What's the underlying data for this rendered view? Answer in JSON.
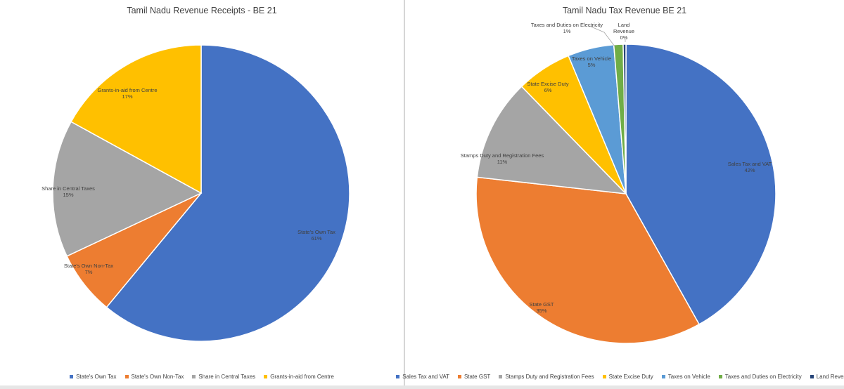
{
  "chart_data": [
    {
      "type": "pie",
      "title": "Tamil Nadu Revenue Receipts - BE 21",
      "slices": [
        {
          "label": "State's Own Tax",
          "value": 61,
          "pct_label": "61%",
          "color": "#4472C4"
        },
        {
          "label": "State's Own Non-Tax",
          "value": 7,
          "pct_label": "7%",
          "color": "#ED7D31"
        },
        {
          "label": "Share in Central Taxes",
          "value": 15,
          "pct_label": "15%",
          "color": "#A5A5A5"
        },
        {
          "label": "Grants-in-aid from Centre",
          "value": 17,
          "pct_label": "17%",
          "color": "#FFC000"
        }
      ],
      "legend": [
        "State's Own Tax",
        "State's Own Non-Tax",
        "Share in Central Taxes",
        "Grants-in-aid from Centre"
      ],
      "legend_position": "bottom"
    },
    {
      "type": "pie",
      "title": "Tamil Nadu Tax Revenue BE 21",
      "slices": [
        {
          "label": "Sales Tax and VAT",
          "value": 42,
          "pct_label": "42%",
          "color": "#4472C4"
        },
        {
          "label": "State GST",
          "value": 35,
          "pct_label": "35%",
          "color": "#ED7D31"
        },
        {
          "label": "Stamps Duty and Registration Fees",
          "value": 11,
          "pct_label": "11%",
          "color": "#A5A5A5"
        },
        {
          "label": "State Excise Duty",
          "value": 6,
          "pct_label": "6%",
          "color": "#FFC000"
        },
        {
          "label": "Taxes on Vehicle",
          "value": 5,
          "pct_label": "5%",
          "color": "#5B9BD5"
        },
        {
          "label": "Taxes and Duties on Electricity",
          "value": 1,
          "pct_label": "1%",
          "color": "#70AD47"
        },
        {
          "label": "Land Revenue",
          "value": 0.3,
          "pct_label": "0%",
          "color": "#264478"
        }
      ],
      "legend": [
        "Sales Tax and VAT",
        "State GST",
        "Stamps Duty and Registration Fees",
        "State Excise Duty",
        "Taxes on Vehicle",
        "Taxes and Duties on Electricity",
        "Land Revenue"
      ],
      "legend_position": "bottom"
    }
  ]
}
